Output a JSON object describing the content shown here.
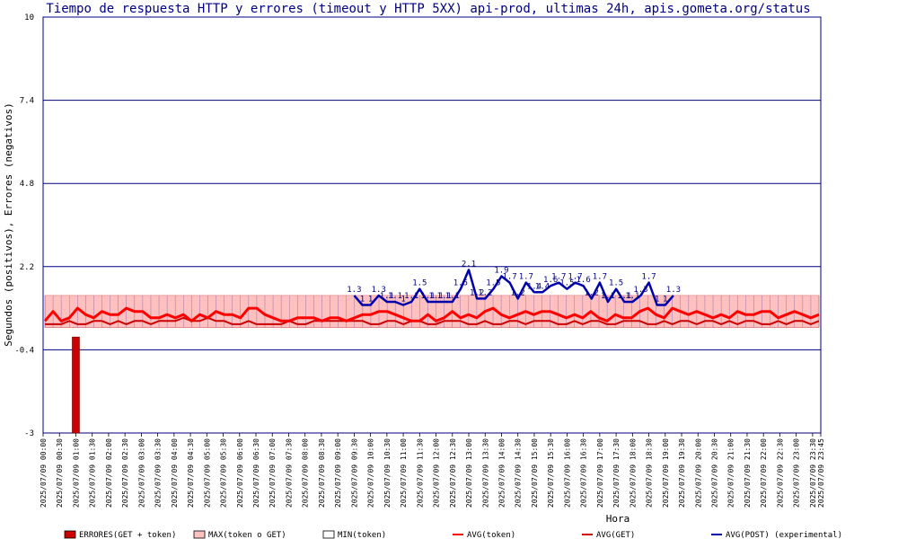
{
  "chart_data": {
    "type": "line",
    "title": "Tiempo de respuesta HTTP y errores (timeout y HTTP 5XX) api-prod, ultimas 24h, apis.gometa.org/status",
    "ylabel": "Segundos (positivos), Errores (negativos)",
    "xlabel": "Hora",
    "ylim": [
      -3,
      10
    ],
    "yticks": [
      "-3",
      "-0.4",
      "2.2",
      "4.8",
      "7.4",
      "10"
    ],
    "xticks": [
      "2025/07/09 00:00",
      "2025/07/09 00:30",
      "2025/07/09 01:00",
      "2025/07/09 01:30",
      "2025/07/09 02:00",
      "2025/07/09 02:30",
      "2025/07/09 03:00",
      "2025/07/09 03:30",
      "2025/07/09 04:00",
      "2025/07/09 04:30",
      "2025/07/09 05:00",
      "2025/07/09 05:30",
      "2025/07/09 06:00",
      "2025/07/09 06:30",
      "2025/07/09 07:00",
      "2025/07/09 07:30",
      "2025/07/09 08:00",
      "2025/07/09 08:30",
      "2025/07/09 09:00",
      "2025/07/09 09:30",
      "2025/07/09 10:00",
      "2025/07/09 10:30",
      "2025/07/09 11:00",
      "2025/07/09 11:30",
      "2025/07/09 12:00",
      "2025/07/09 12:30",
      "2025/07/09 13:00",
      "2025/07/09 13:30",
      "2025/07/09 14:00",
      "2025/07/09 14:30",
      "2025/07/09 15:00",
      "2025/07/09 15:30",
      "2025/07/09 16:00",
      "2025/07/09 16:30",
      "2025/07/09 17:00",
      "2025/07/09 17:30",
      "2025/07/09 18:00",
      "2025/07/09 18:30",
      "2025/07/09 19:00",
      "2025/07/09 19:30",
      "2025/07/09 20:00",
      "2025/07/09 20:30",
      "2025/07/09 21:00",
      "2025/07/09 21:30",
      "2025/07/09 22:00",
      "2025/07/09 22:30",
      "2025/07/09 23:00",
      "2025/07/09 23:30",
      "2025/07/09 23:45"
    ],
    "grid": true,
    "colors": {
      "errores": "#cc0000",
      "max": "#ffc0c0",
      "min": "#ffffff",
      "avg_token": "#ff0000",
      "avg_get": "#cc0000",
      "avg_post": "#0000aa",
      "plot_border": "#000080",
      "gridline": "#000080"
    },
    "series": [
      {
        "name": "ERRORES(GET + token)",
        "kind": "bar",
        "x": [
          "2025/07/09 01:00"
        ],
        "values": [
          -3
        ]
      },
      {
        "name": "MAX(token o GET)",
        "kind": "band",
        "values": [
          1.3
        ]
      },
      {
        "name": "MIN(token)",
        "kind": "band",
        "values": [
          0.3
        ]
      },
      {
        "name": "AVG(token)",
        "kind": "line",
        "values": [
          0.5,
          0.8,
          0.5,
          0.6,
          0.9,
          0.7,
          0.6,
          0.8,
          0.7,
          0.7,
          0.9,
          0.8,
          0.8,
          0.6,
          0.6,
          0.7,
          0.6,
          0.7,
          0.5,
          0.7,
          0.6,
          0.8,
          0.7,
          0.7,
          0.6,
          0.9,
          0.9,
          0.7,
          0.6,
          0.5,
          0.5,
          0.6,
          0.6,
          0.6,
          0.5,
          0.6,
          0.6,
          0.5,
          0.6,
          0.7,
          0.7,
          0.8,
          0.8,
          0.7,
          0.6,
          0.5,
          0.5,
          0.7,
          0.5,
          0.6,
          0.8,
          0.6,
          0.7,
          0.6,
          0.8,
          0.9,
          0.7,
          0.6,
          0.7,
          0.8,
          0.7,
          0.8,
          0.8,
          0.7,
          0.6,
          0.7,
          0.6,
          0.8,
          0.6,
          0.5,
          0.7,
          0.6,
          0.6,
          0.8,
          0.9,
          0.7,
          0.6,
          0.9,
          0.8,
          0.7,
          0.8,
          0.7,
          0.6,
          0.7,
          0.6,
          0.8,
          0.7,
          0.7,
          0.8,
          0.8,
          0.6,
          0.7,
          0.8,
          0.7,
          0.6,
          0.7
        ]
      },
      {
        "name": "AVG(GET)",
        "kind": "line",
        "values": [
          0.4,
          0.4,
          0.4,
          0.5,
          0.4,
          0.4,
          0.5,
          0.5,
          0.4,
          0.5,
          0.4,
          0.5,
          0.5,
          0.4,
          0.5,
          0.5,
          0.5,
          0.6,
          0.5,
          0.5,
          0.6,
          0.5,
          0.5,
          0.4,
          0.4,
          0.5,
          0.4,
          0.4,
          0.4,
          0.4,
          0.5,
          0.4,
          0.4,
          0.5,
          0.5,
          0.5,
          0.5,
          0.5,
          0.5,
          0.5,
          0.4,
          0.4,
          0.5,
          0.5,
          0.4,
          0.5,
          0.5,
          0.4,
          0.4,
          0.5,
          0.5,
          0.5,
          0.4,
          0.4,
          0.5,
          0.4,
          0.4,
          0.5,
          0.5,
          0.4,
          0.5,
          0.5,
          0.5,
          0.4,
          0.4,
          0.5,
          0.4,
          0.5,
          0.5,
          0.4,
          0.4,
          0.5,
          0.5,
          0.5,
          0.4,
          0.4,
          0.5,
          0.4,
          0.5,
          0.5,
          0.4,
          0.5,
          0.5,
          0.4,
          0.5,
          0.4,
          0.5,
          0.5,
          0.4,
          0.4,
          0.5,
          0.4,
          0.5,
          0.5,
          0.4,
          0.5
        ]
      },
      {
        "name": "AVG(POST) (experimental)",
        "kind": "line",
        "x": [
          "2025/07/09 09:30",
          "2025/07/09 09:45",
          "2025/07/09 10:00",
          "2025/07/09 10:15",
          "2025/07/09 10:30",
          "2025/07/09 10:45",
          "2025/07/09 11:00",
          "2025/07/09 11:15",
          "2025/07/09 11:30",
          "2025/07/09 11:45",
          "2025/07/09 12:00",
          "2025/07/09 12:15",
          "2025/07/09 12:30",
          "2025/07/09 12:45",
          "2025/07/09 13:00",
          "2025/07/09 13:15",
          "2025/07/09 13:30",
          "2025/07/09 13:45",
          "2025/07/09 14:00",
          "2025/07/09 14:15",
          "2025/07/09 14:30",
          "2025/07/09 14:45",
          "2025/07/09 15:00",
          "2025/07/09 15:15",
          "2025/07/09 15:30",
          "2025/07/09 15:45",
          "2025/07/09 16:00",
          "2025/07/09 16:15",
          "2025/07/09 16:30",
          "2025/07/09 16:45",
          "2025/07/09 17:00",
          "2025/07/09 17:15",
          "2025/07/09 17:30",
          "2025/07/09 17:45",
          "2025/07/09 18:00",
          "2025/07/09 18:15",
          "2025/07/09 18:30",
          "2025/07/09 18:45",
          "2025/07/09 19:00",
          "2025/07/09 19:15"
        ],
        "values": [
          1.3,
          1.0,
          1.0,
          1.3,
          1.1,
          1.1,
          1.0,
          1.1,
          1.5,
          1.1,
          1.1,
          1.1,
          1.1,
          1.5,
          2.1,
          1.2,
          1.2,
          1.5,
          1.9,
          1.7,
          1.2,
          1.7,
          1.4,
          1.4,
          1.6,
          1.7,
          1.5,
          1.7,
          1.6,
          1.2,
          1.7,
          1.1,
          1.5,
          1.1,
          1.1,
          1.3,
          1.7,
          1.0,
          1.0,
          1.3
        ]
      }
    ]
  },
  "legend": [
    {
      "label": "ERRORES(GET + token)",
      "swatch": "box",
      "fill": "#cc0000",
      "stroke": "#000000"
    },
    {
      "label": "MAX(token o GET)",
      "swatch": "box",
      "fill": "#ffc0c0",
      "stroke": "#000000"
    },
    {
      "label": "MIN(token)",
      "swatch": "box",
      "fill": "#ffffff",
      "stroke": "#000000"
    },
    {
      "label": "AVG(token)",
      "swatch": "line",
      "fill": "#ff0000"
    },
    {
      "label": "AVG(GET)",
      "swatch": "line",
      "fill": "#cc0000"
    },
    {
      "label": "AVG(POST) (experimental)",
      "swatch": "line",
      "fill": "#0000aa"
    }
  ]
}
